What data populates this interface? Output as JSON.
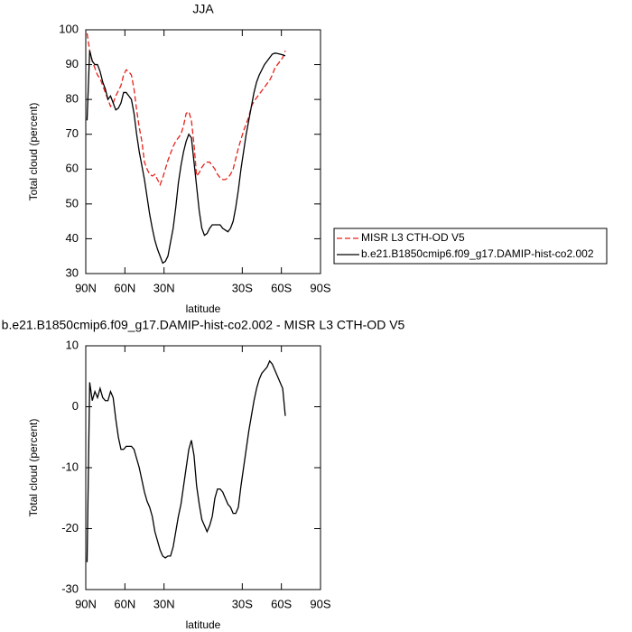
{
  "chart_data": [
    {
      "type": "line",
      "title": "JJA",
      "xlabel": "latitude",
      "ylabel": "Total cloud (percent)",
      "xlim": [
        90,
        -90
      ],
      "xticks": [
        {
          "value": 90,
          "label": "90N"
        },
        {
          "value": 60,
          "label": "60N"
        },
        {
          "value": 30,
          "label": "30N"
        },
        {
          "value": -30,
          "label": "30S"
        },
        {
          "value": -60,
          "label": "60S"
        },
        {
          "value": -90,
          "label": "90S"
        }
      ],
      "ylim": [
        30,
        100
      ],
      "yticks": [
        30,
        40,
        50,
        60,
        70,
        80,
        90,
        100
      ],
      "legend": "right",
      "x": [
        89,
        87,
        85,
        83,
        81,
        79,
        77,
        75,
        73,
        71,
        69,
        67,
        65,
        63,
        61,
        59,
        57,
        55,
        53,
        51,
        49,
        47,
        45,
        43,
        41,
        39,
        37,
        35,
        33,
        31,
        29,
        27,
        25,
        23,
        21,
        19,
        17,
        15,
        13,
        11,
        9,
        7,
        5,
        3,
        1,
        -1,
        -3,
        -5,
        -7,
        -9,
        -11,
        -13,
        -15,
        -17,
        -19,
        -21,
        -23,
        -25,
        -27,
        -29,
        -31,
        -33,
        -35,
        -37,
        -39,
        -41,
        -43,
        -45,
        -47,
        -49,
        -51,
        -53,
        -55,
        -57,
        -59,
        -61,
        -63
      ],
      "series": [
        {
          "name": "MISR L3 CTH-OD V5",
          "color": "#e8201a",
          "linestyle": "dashed",
          "values": [
            99,
            94,
            91,
            89,
            87,
            86,
            84,
            82,
            80,
            78,
            79,
            81,
            82.5,
            84,
            87,
            88.5,
            88,
            87,
            83,
            77,
            72,
            68,
            62,
            60,
            58.5,
            58,
            58.5,
            57,
            55.5,
            57.5,
            60,
            62.5,
            64.5,
            66.5,
            68,
            69,
            70,
            72.5,
            76,
            76.5,
            74,
            67,
            58,
            59,
            60.5,
            61.5,
            62,
            62,
            61,
            60,
            58.5,
            57.5,
            57,
            57,
            57.5,
            58.5,
            60,
            63,
            66,
            68.5,
            71,
            73,
            75,
            78,
            79.5,
            80.5,
            81.5,
            82.5,
            83.5,
            84.5,
            85.5,
            87,
            89,
            90,
            91,
            92,
            94
          ]
        },
        {
          "name": "b.e21.B1850cmip6.f09_g17.DAMIP-hist-co2.002",
          "color": "#000000",
          "linestyle": "solid",
          "values": [
            74,
            94,
            91,
            90,
            90,
            88,
            85,
            83,
            80,
            81,
            79,
            77,
            77.5,
            79,
            82,
            82,
            81,
            80,
            76,
            70,
            65,
            61,
            57,
            52,
            47,
            43,
            39.5,
            37,
            35,
            33,
            33.5,
            35,
            39,
            43,
            49,
            56,
            61,
            65,
            68,
            70,
            69,
            62,
            55,
            48,
            43,
            41,
            41.5,
            43,
            44,
            44,
            44,
            44,
            43,
            42.5,
            42,
            43,
            45,
            49,
            54,
            60,
            65,
            70,
            74,
            78,
            82,
            85,
            87,
            88.5,
            90,
            91,
            92,
            93,
            93.3,
            93.2,
            93,
            92.8,
            92.5
          ]
        }
      ]
    },
    {
      "type": "line",
      "title": "b.e21.B1850cmip6.f09_g17.DAMIP-hist-co2.002 - MISR L3 CTH-OD V5",
      "xlabel": "latitude",
      "ylabel": "Total cloud (percent)",
      "xlim": [
        90,
        -90
      ],
      "xticks": [
        {
          "value": 90,
          "label": "90N"
        },
        {
          "value": 60,
          "label": "60N"
        },
        {
          "value": 30,
          "label": "30N"
        },
        {
          "value": -30,
          "label": "30S"
        },
        {
          "value": -60,
          "label": "60S"
        },
        {
          "value": -90,
          "label": "90S"
        }
      ],
      "ylim": [
        -30,
        10
      ],
      "yticks": [
        -30,
        -20,
        -10,
        0,
        10
      ],
      "x": [
        89,
        87,
        85,
        83,
        81,
        79,
        77,
        75,
        73,
        71,
        69,
        67,
        65,
        63,
        61,
        59,
        57,
        55,
        53,
        51,
        49,
        47,
        45,
        43,
        41,
        39,
        37,
        35,
        33,
        31,
        29,
        27,
        25,
        23,
        21,
        19,
        17,
        15,
        13,
        11,
        9,
        7,
        5,
        3,
        1,
        -1,
        -3,
        -5,
        -7,
        -9,
        -11,
        -13,
        -15,
        -17,
        -19,
        -21,
        -23,
        -25,
        -27,
        -29,
        -31,
        -33,
        -35,
        -37,
        -39,
        -41,
        -43,
        -45,
        -47,
        -49,
        -51,
        -53,
        -55,
        -57,
        -59,
        -61,
        -63
      ],
      "series": [
        {
          "color": "#000000",
          "linestyle": "solid",
          "values": [
            -25.5,
            4,
            1,
            2.5,
            1.5,
            3,
            1.5,
            1,
            1,
            2.5,
            1.5,
            -2,
            -5,
            -7,
            -7,
            -6.5,
            -6.5,
            -6.5,
            -7,
            -8.5,
            -10,
            -12,
            -14,
            -15.5,
            -16.5,
            -18,
            -20.5,
            -22,
            -23.5,
            -24.5,
            -24.8,
            -24.5,
            -24.5,
            -23,
            -20.5,
            -18,
            -16,
            -13,
            -10,
            -7,
            -5.5,
            -8,
            -13,
            -16,
            -18.5,
            -19.5,
            -20.5,
            -19.5,
            -18,
            -15,
            -13.5,
            -13.5,
            -14,
            -15,
            -16,
            -16.5,
            -17.5,
            -17.5,
            -16.5,
            -13,
            -10,
            -7,
            -4,
            -1.5,
            1,
            3,
            4.5,
            5.5,
            6,
            6.5,
            7.5,
            7,
            6,
            5,
            4,
            3,
            -1.5
          ]
        }
      ]
    }
  ]
}
